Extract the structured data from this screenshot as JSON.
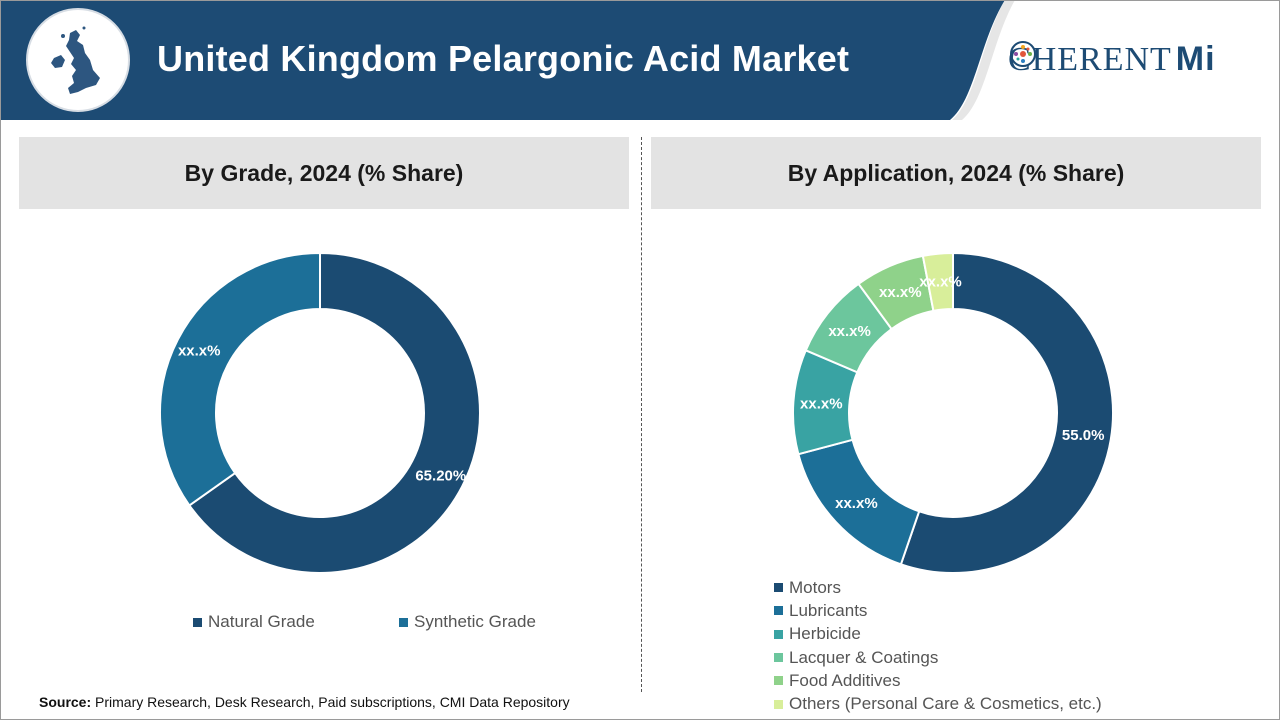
{
  "header": {
    "title": "United Kingdom Pelargonic Acid Market",
    "logo_left": "C",
    "logo_right": "HERENT",
    "logo_mi": "Mi",
    "map_icon": "uk-map-icon"
  },
  "colors": {
    "header_bg": "#1d4b74",
    "motors": "#1b4b72",
    "lubricants": "#1c6f98",
    "herbicide": "#39a3a3",
    "lacquer": "#6cc69d",
    "food": "#8fd28a",
    "others": "#d8ee9a"
  },
  "source": {
    "label": "Source:",
    "text": "Primary Research, Desk Research, Paid subscriptions, CMI Data Repository"
  },
  "chart_data": [
    {
      "type": "pie",
      "title": "By Grade, 2024 (% Share)",
      "series": [
        {
          "name": "Natural Grade",
          "value": 65.2,
          "label": "65.20%",
          "color": "#1b4b72"
        },
        {
          "name": "Synthetic Grade",
          "value": 34.8,
          "label": "xx.x%",
          "color": "#1c6f98"
        }
      ],
      "legend": "bottom"
    },
    {
      "type": "pie",
      "title": "By Application, 2024 (% Share)",
      "series": [
        {
          "name": "Motors",
          "value": 55.0,
          "label": "55.0%",
          "color": "#1b4b72"
        },
        {
          "name": "Lubricants",
          "value": 15.5,
          "label": "xx.x%",
          "color": "#1c6f98"
        },
        {
          "name": "Herbicide",
          "value": 10.5,
          "label": "xx.x%",
          "color": "#39a3a3"
        },
        {
          "name": "Lacquer & Coatings",
          "value": 8.5,
          "label": "xx.x%",
          "color": "#6cc69d"
        },
        {
          "name": "Food Additives",
          "value": 7.0,
          "label": "xx.x%",
          "color": "#8fd28a"
        },
        {
          "name": "Others (Personal Care & Cosmetics, etc.)",
          "value": 3.0,
          "label": "xx.x%",
          "color": "#d8ee9a"
        }
      ],
      "legend": "bottom"
    }
  ]
}
